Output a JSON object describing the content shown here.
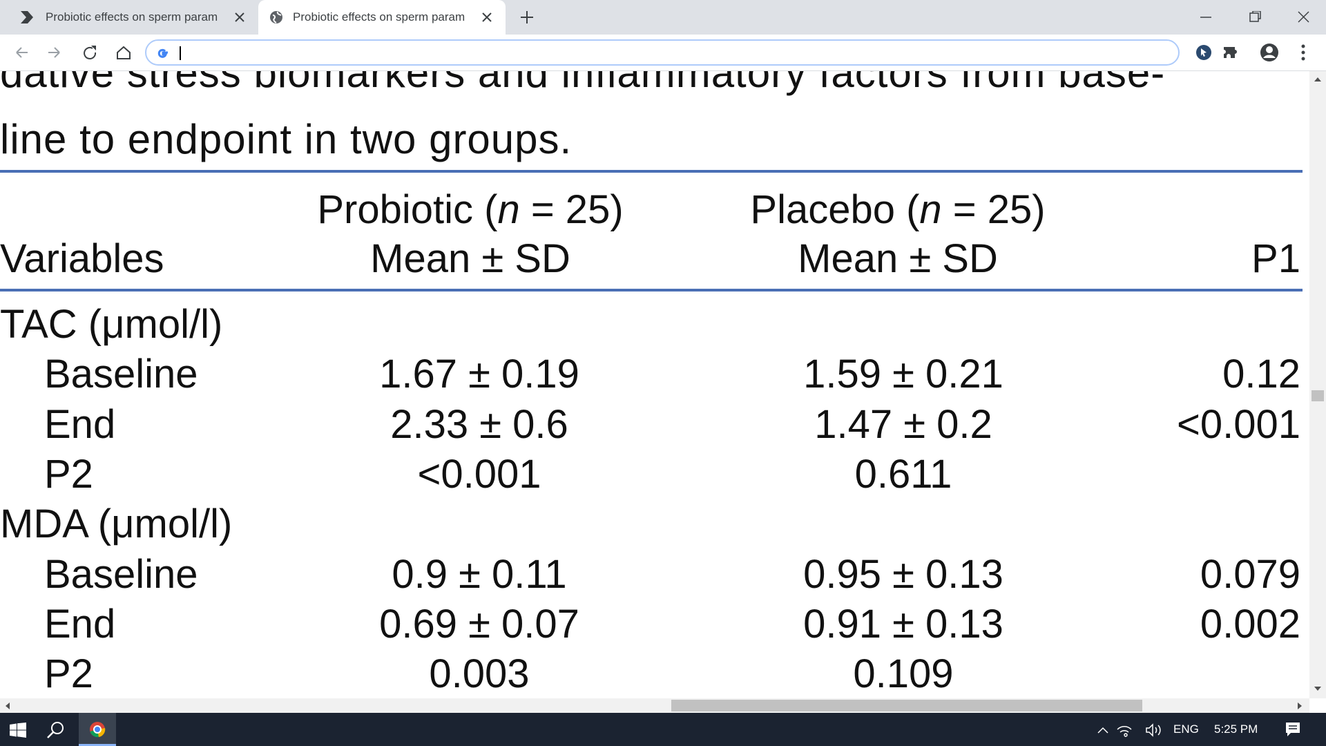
{
  "browser": {
    "tabs": [
      "Probiotic effects on sperm param",
      "Probiotic effects on sperm param"
    ]
  },
  "document": {
    "caption": [
      "dative stress biomarkers and inflammatory factors from base-",
      "line to endpoint in two groups."
    ],
    "table": {
      "group_headers": [
        [
          "Probiotic (",
          "n",
          " = 25)"
        ],
        [
          "Placebo (",
          "n",
          " = 25)"
        ]
      ],
      "columns": [
        "Variables",
        "Mean ± SD",
        "Mean ± SD",
        "P1"
      ],
      "sections": [
        {
          "title": "TAC (μmol/l)",
          "rows": [
            [
              "Baseline",
              "1.67 ± 0.19",
              "1.59 ± 0.21",
              "0.12"
            ],
            [
              "End",
              "2.33 ± 0.6",
              "1.47 ± 0.2",
              "<0.001"
            ],
            [
              "P2",
              "<0.001",
              "0.611"
            ]
          ]
        },
        {
          "title": "MDA (μmol/l)",
          "rows": [
            [
              "Baseline",
              "0.9 ± 0.11",
              "0.95 ± 0.13",
              "0.079"
            ],
            [
              "End",
              "0.69 ± 0.07",
              "0.91 ± 0.13",
              "0.002"
            ],
            [
              "P2",
              "0.003",
              "0.109"
            ]
          ]
        }
      ]
    }
  },
  "taskbar": {
    "language": "ENG",
    "time": "5:25 PM"
  }
}
